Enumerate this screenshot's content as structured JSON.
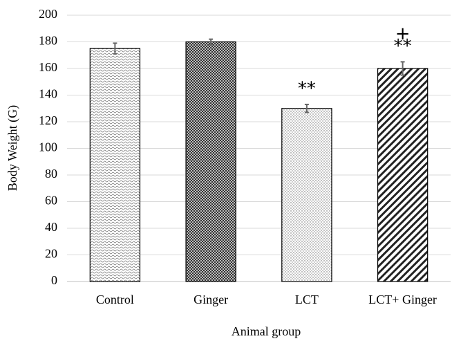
{
  "chart_data": {
    "type": "bar",
    "xlabel": "Animal group",
    "ylabel": "Body Weight (G)",
    "categories": [
      "Control",
      "Ginger",
      "LCT",
      "LCT+ Ginger"
    ],
    "values": [
      175,
      180,
      130,
      160
    ],
    "errors": [
      4,
      2,
      3,
      5
    ],
    "patterns": [
      "wave",
      "checker",
      "dots",
      "hatch"
    ],
    "annotations": [
      {
        "category": "LCT",
        "text": "**"
      },
      {
        "category": "LCT+ Ginger",
        "text": "**"
      },
      {
        "category": "LCT+ Ginger",
        "text": "+"
      }
    ],
    "ylim": [
      0,
      200
    ],
    "yticks": [
      0,
      20,
      40,
      60,
      80,
      100,
      120,
      140,
      160,
      180,
      200
    ],
    "grid": true
  }
}
